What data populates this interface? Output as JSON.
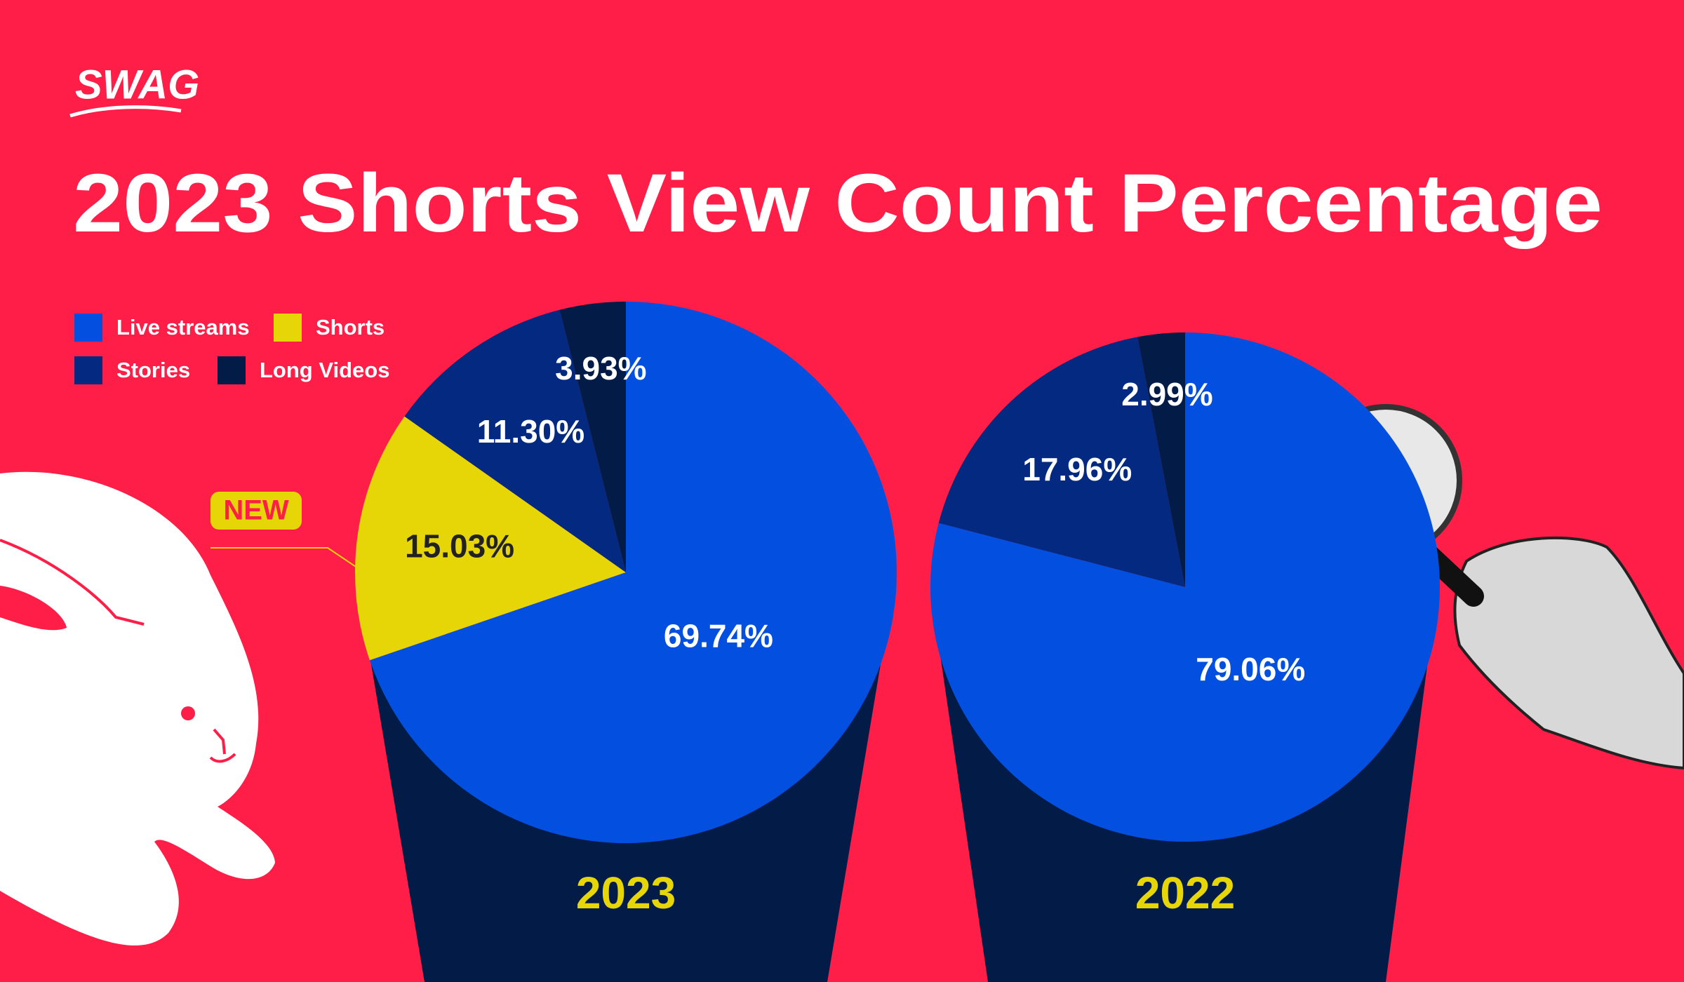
{
  "logo": "SWAG",
  "title": "2023 Shorts View Count Percentage",
  "annotation": "NEW",
  "chart_data": [
    {
      "type": "pie",
      "title": "2023",
      "categories": [
        "Live streams",
        "Shorts",
        "Stories",
        "Long Videos"
      ],
      "values": [
        69.74,
        15.03,
        11.3,
        3.93
      ],
      "value_labels": [
        "69.74%",
        "15.03%",
        "11.30%",
        "3.93%"
      ],
      "colors": [
        "#0350e0",
        "#e6d507",
        "#032a80",
        "#021c47"
      ]
    },
    {
      "type": "pie",
      "title": "2022",
      "categories": [
        "Live streams",
        "Stories",
        "Long Videos"
      ],
      "values": [
        79.06,
        17.96,
        2.99
      ],
      "value_labels": [
        "79.06%",
        "17.96%",
        "2.99%"
      ],
      "colors": [
        "#0350e0",
        "#032a80",
        "#021c47"
      ]
    }
  ]
}
